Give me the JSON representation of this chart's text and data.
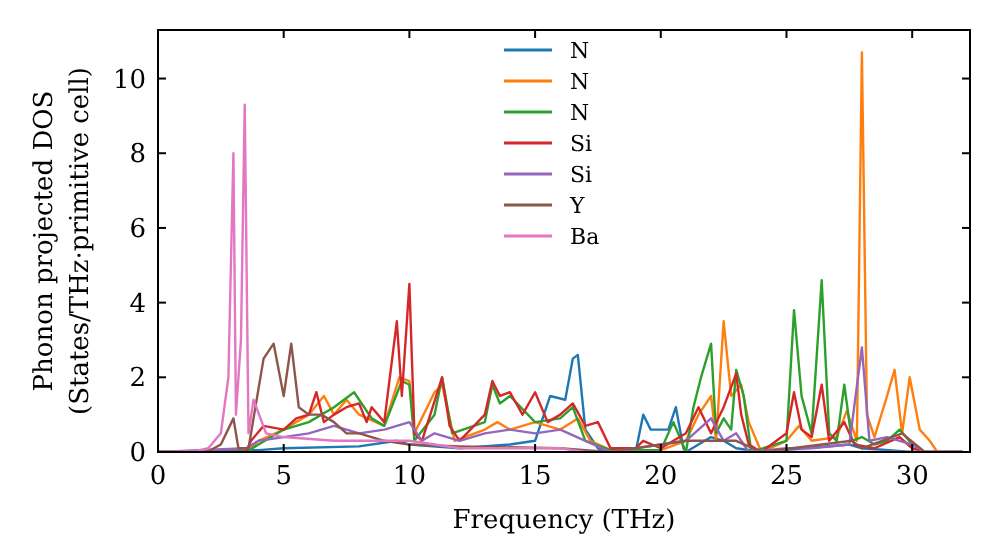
{
  "chart_data": {
    "type": "line",
    "xlabel": "Frequency (THz)",
    "ylabel": "Phonon projected DOS\n(States/THz·primitive cell)",
    "xlim": [
      0,
      32.3
    ],
    "ylim": [
      0,
      11.3
    ],
    "xticks": [
      0,
      5,
      10,
      15,
      20,
      25,
      30
    ],
    "yticks": [
      0,
      2,
      4,
      6,
      8,
      10
    ],
    "legend": "top",
    "grid": false,
    "marker": "none",
    "line_style": "solid",
    "series": [
      {
        "name": "N",
        "color": "#1f77b4",
        "x": [
          0,
          4,
          5,
          8,
          9.5,
          10,
          12,
          14,
          15,
          15.6,
          16.2,
          16.5,
          16.7,
          17,
          17.5,
          18,
          19,
          19.3,
          19.6,
          20.3,
          20.6,
          20.9,
          21,
          22,
          22.5,
          23,
          24,
          27.5,
          28,
          30,
          32
        ],
        "values": [
          0,
          0.05,
          0.1,
          0.15,
          0.3,
          0.2,
          0.1,
          0.2,
          0.3,
          1.5,
          1.4,
          2.5,
          2.6,
          0.6,
          0.1,
          0,
          0,
          1.0,
          0.6,
          0.6,
          1.2,
          0.1,
          0,
          0.4,
          0.3,
          0.1,
          0,
          0.2,
          0.1,
          0,
          0
        ]
      },
      {
        "name": "N",
        "color": "#ff7f0e",
        "x": [
          0,
          3.5,
          4,
          5,
          6,
          6.6,
          7,
          7.5,
          8,
          9,
          9.6,
          10,
          10.2,
          11,
          11.3,
          11.8,
          13,
          13.5,
          14,
          15,
          16,
          16.7,
          17.2,
          18,
          20,
          21,
          21.5,
          22,
          22.2,
          22.5,
          22.8,
          23.2,
          23.5,
          24,
          25,
          25.5,
          26,
          27,
          27.4,
          27.8,
          28,
          28.2,
          28.5,
          29,
          29.3,
          29.6,
          29.9,
          30.3,
          30.7,
          31,
          32
        ],
        "values": [
          0,
          0,
          0.3,
          0.6,
          1.0,
          1.5,
          1.0,
          1.4,
          1.0,
          0.7,
          2.0,
          1.9,
          0.5,
          1.6,
          1.8,
          0.3,
          0.6,
          0.8,
          0.6,
          0.8,
          0.6,
          0.9,
          0.3,
          0.05,
          0.05,
          0.3,
          1.0,
          1.5,
          0.3,
          3.5,
          1.5,
          1.8,
          0.8,
          0,
          0.3,
          0.7,
          0.3,
          0.4,
          1.1,
          0.3,
          10.7,
          1.0,
          0.4,
          1.5,
          2.2,
          0.5,
          2.0,
          0.6,
          0.3,
          0,
          0
        ]
      },
      {
        "name": "N",
        "color": "#2ca02c",
        "x": [
          0,
          3.5,
          4,
          5,
          6,
          7,
          7.8,
          8.5,
          9,
          9.7,
          10,
          10.2,
          11,
          11.3,
          11.7,
          13,
          13.3,
          13.6,
          14,
          15,
          16,
          16.5,
          17,
          18,
          20,
          20.5,
          21,
          21.3,
          21.6,
          22,
          22.2,
          22.5,
          22.8,
          23,
          23.3,
          23.6,
          25,
          25.3,
          25.6,
          26,
          26.4,
          26.7,
          27,
          27.3,
          27.6,
          28,
          28.5,
          29,
          29.5,
          30,
          30.5,
          32
        ],
        "values": [
          0,
          0,
          0.2,
          0.6,
          0.8,
          1.2,
          1.6,
          0.9,
          0.7,
          1.9,
          1.8,
          0.3,
          1.0,
          2.0,
          0.5,
          0.8,
          1.8,
          1.3,
          1.5,
          0.8,
          0.9,
          1.2,
          0.3,
          0.05,
          0.05,
          0.8,
          0,
          1.2,
          2.0,
          2.9,
          0.5,
          0.9,
          0.6,
          2.2,
          1.5,
          0,
          0.3,
          3.8,
          1.5,
          0.5,
          4.6,
          0.5,
          0.3,
          1.8,
          0.3,
          0.4,
          0.2,
          0.3,
          0.6,
          0.2,
          0,
          0
        ]
      },
      {
        "name": "Si",
        "color": "#d62728",
        "x": [
          0,
          3.5,
          3.7,
          4.2,
          5,
          5.5,
          6,
          6.3,
          6.6,
          7,
          7.5,
          8,
          8.3,
          8.5,
          9,
          9.5,
          9.7,
          10,
          10.2,
          10.5,
          11.3,
          11.6,
          12,
          13,
          13.3,
          13.6,
          14,
          14.5,
          15,
          15.5,
          16,
          16.5,
          17,
          17.5,
          18,
          19,
          19.3,
          20,
          21,
          21.5,
          22,
          22.5,
          23,
          23.2,
          23.5,
          24,
          25,
          25.3,
          25.6,
          26,
          26.4,
          26.7,
          27.3,
          27.7,
          28.5,
          29.5,
          30,
          30.5,
          32
        ],
        "values": [
          0,
          0,
          0.3,
          0.7,
          0.6,
          0.9,
          1.0,
          1.6,
          0.8,
          1.0,
          1.2,
          1.3,
          0.8,
          1.2,
          0.8,
          3.5,
          1.5,
          4.5,
          0.5,
          0.3,
          2.0,
          0.7,
          0.3,
          1.0,
          1.9,
          1.5,
          1.6,
          1.0,
          1.6,
          0.8,
          1.0,
          1.3,
          0.7,
          0.8,
          0.1,
          0.1,
          0.3,
          0.1,
          0.5,
          1.2,
          0.5,
          1.2,
          2.1,
          1.0,
          0.2,
          0,
          0.5,
          1.6,
          0.6,
          0.4,
          1.8,
          0.3,
          0.8,
          0.2,
          0.1,
          0.4,
          0.1,
          0,
          0
        ]
      },
      {
        "name": "Si",
        "color": "#9467bd",
        "x": [
          0,
          3.5,
          4,
          5,
          6,
          7,
          8,
          9,
          10,
          10.5,
          11,
          12,
          13,
          14,
          15,
          16,
          17,
          18,
          21,
          21.5,
          22,
          22.5,
          23,
          23.5,
          25,
          26,
          27.5,
          28,
          28.3,
          29,
          30,
          30.5,
          32
        ],
        "values": [
          0,
          0.1,
          0.3,
          0.4,
          0.5,
          0.7,
          0.5,
          0.6,
          0.8,
          0.3,
          0.5,
          0.3,
          0.5,
          0.6,
          0.5,
          0.6,
          0.3,
          0,
          0.3,
          0.6,
          0.9,
          0.3,
          0.5,
          0,
          0.1,
          0.1,
          0.2,
          2.8,
          0.3,
          0.4,
          0.2,
          0,
          0
        ]
      },
      {
        "name": "Y",
        "color": "#8c564b",
        "x": [
          0,
          2,
          2.5,
          3.0,
          3.2,
          3.6,
          4.2,
          4.6,
          5.0,
          5.3,
          5.6,
          6,
          6.5,
          7,
          7.5,
          8,
          9,
          10,
          12,
          16,
          17,
          18,
          21,
          22,
          23,
          24,
          27.6,
          28,
          29.6,
          30.5,
          32
        ],
        "values": [
          0,
          0.02,
          0.2,
          0.9,
          0.1,
          0.1,
          2.5,
          2.9,
          1.5,
          2.9,
          1.2,
          1.0,
          1.0,
          0.8,
          0.5,
          0.5,
          0.3,
          0.2,
          0.15,
          0.1,
          0.05,
          0,
          0.3,
          0.3,
          0.3,
          0,
          0.3,
          0.1,
          0.5,
          0,
          0
        ]
      },
      {
        "name": "Ba",
        "color": "#e377c2",
        "x": [
          0,
          1.5,
          2.0,
          2.5,
          2.8,
          3.0,
          3.1,
          3.3,
          3.45,
          3.6,
          3.8,
          4.3,
          5,
          7,
          10,
          12,
          16,
          17,
          32
        ],
        "values": [
          0,
          0.02,
          0.1,
          0.5,
          2.0,
          8.0,
          1.0,
          3.0,
          9.3,
          0.5,
          1.4,
          0.5,
          0.4,
          0.3,
          0.3,
          0.1,
          0.1,
          0,
          0
        ]
      }
    ]
  }
}
